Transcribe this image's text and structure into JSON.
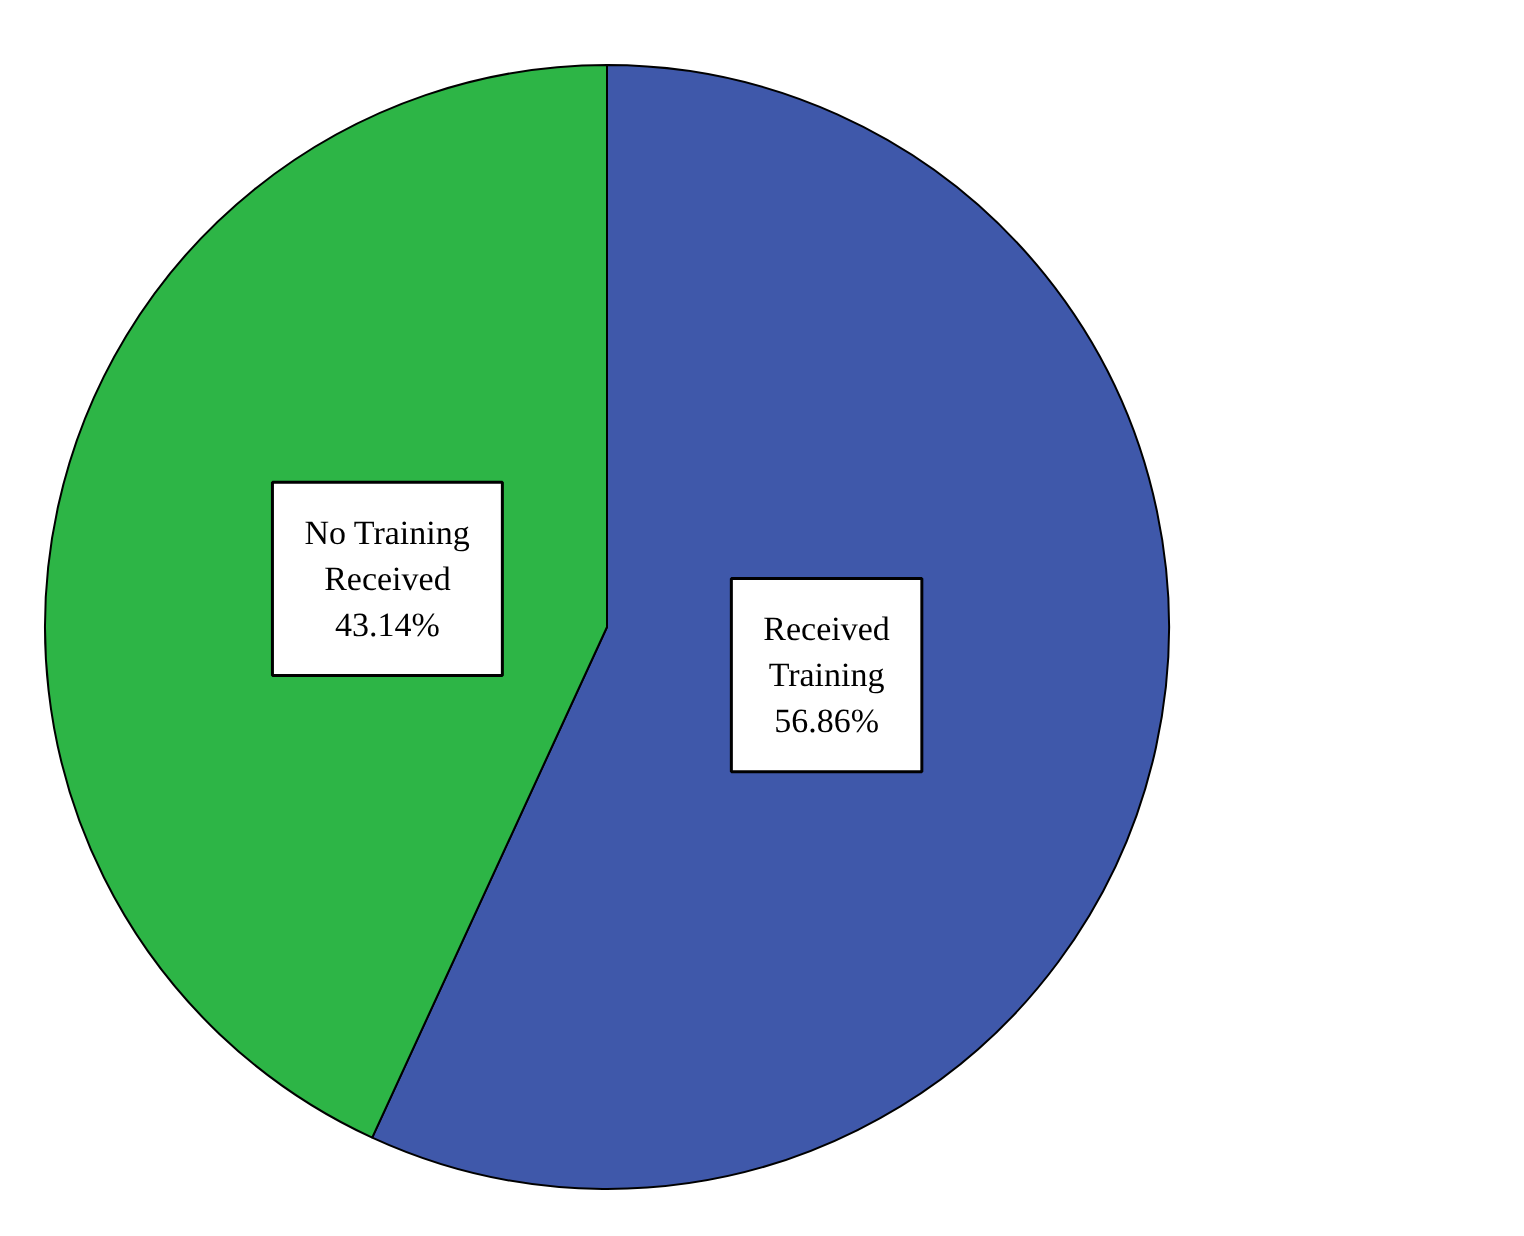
{
  "chart_data": {
    "type": "pie",
    "categories": [
      "Received Training",
      "No Training Received"
    ],
    "values": [
      56.86,
      43.14
    ],
    "colors": [
      "#3f58aa",
      "#2db546"
    ],
    "value_labels": [
      "56.86%",
      "43.14%"
    ]
  }
}
